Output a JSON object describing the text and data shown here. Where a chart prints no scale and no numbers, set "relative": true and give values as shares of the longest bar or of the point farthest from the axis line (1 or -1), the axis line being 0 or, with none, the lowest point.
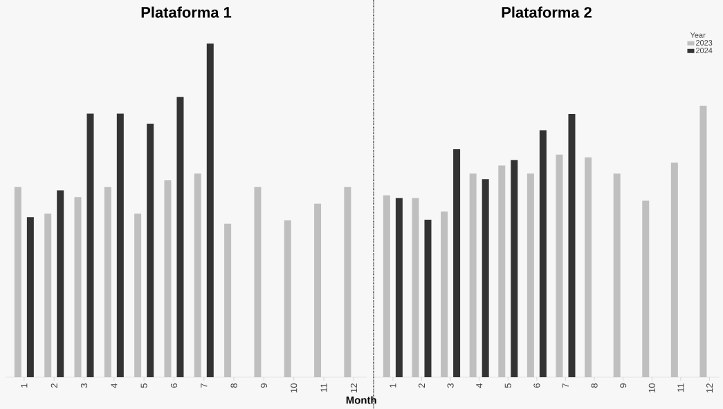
{
  "chart_data": [
    {
      "type": "bar",
      "title": "Plataforma 1",
      "xlabel": "Month",
      "relative": true,
      "legend": false,
      "categories": [
        "1",
        "2",
        "3",
        "4",
        "5",
        "6",
        "7",
        "8",
        "9",
        "10",
        "11",
        "12"
      ],
      "series": [
        {
          "color": "#bfbfbf",
          "values": [
            0.57,
            0.49,
            0.54,
            0.57,
            0.49,
            0.59,
            0.61,
            0.46,
            0.57,
            0.47,
            0.52,
            0.57
          ]
        },
        {
          "color": "#333333",
          "values": [
            0.48,
            0.56,
            0.79,
            0.79,
            0.76,
            0.84,
            1.0,
            null,
            null,
            null,
            null,
            null
          ]
        }
      ]
    },
    {
      "type": "bar",
      "title": "Plataforma 2",
      "relative": true,
      "legend": "top right",
      "legend_title": "Year",
      "categories": [
        "1",
        "2",
        "3",
        "4",
        "5",
        "6",
        "7",
        "8",
        "9",
        "10",
        "11",
        "12"
      ],
      "series": [
        {
          "name": "2023",
          "color": "#bfbfbf",
          "values": [
            0.67,
            0.66,
            0.61,
            0.75,
            0.78,
            0.75,
            0.82,
            0.81,
            0.75,
            0.65,
            0.79,
            1.0
          ]
        },
        {
          "name": "2024",
          "color": "#333333",
          "values": [
            0.66,
            0.58,
            0.84,
            0.73,
            0.8,
            0.91,
            0.97,
            null,
            null,
            null,
            null,
            null
          ]
        }
      ]
    }
  ]
}
